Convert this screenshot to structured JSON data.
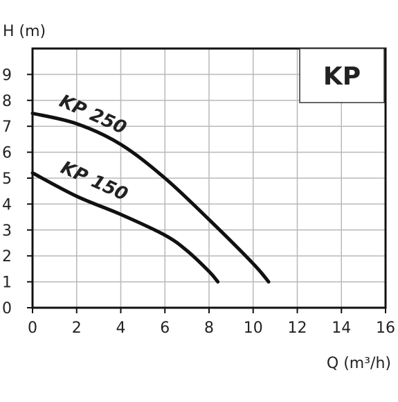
{
  "chart_data": {
    "type": "line",
    "title": "",
    "badge": "KP",
    "ylabel": "H (m)",
    "xlabel": "Q (m³/h)",
    "xlim": [
      0,
      16
    ],
    "ylim": [
      0,
      10
    ],
    "x_ticks": [
      "0",
      "2",
      "4",
      "6",
      "8",
      "10",
      "12",
      "14",
      "16"
    ],
    "y_ticks": [
      "0",
      "1",
      "2",
      "3",
      "4",
      "5",
      "6",
      "7",
      "8",
      "9"
    ],
    "grid": true,
    "series": [
      {
        "name": "KP 250",
        "x": [
          0,
          2,
          4,
          6,
          8,
          10,
          10.7
        ],
        "y": [
          7.5,
          7.1,
          6.3,
          5.0,
          3.4,
          1.7,
          1.0
        ]
      },
      {
        "name": "KP 150",
        "x": [
          0,
          2,
          4,
          6,
          7,
          8,
          8.4
        ],
        "y": [
          5.2,
          4.3,
          3.6,
          2.8,
          2.2,
          1.4,
          1.0
        ]
      }
    ],
    "colors": {
      "line": "#111111",
      "grid": "#b8b8b8",
      "frame": "#111111"
    }
  }
}
